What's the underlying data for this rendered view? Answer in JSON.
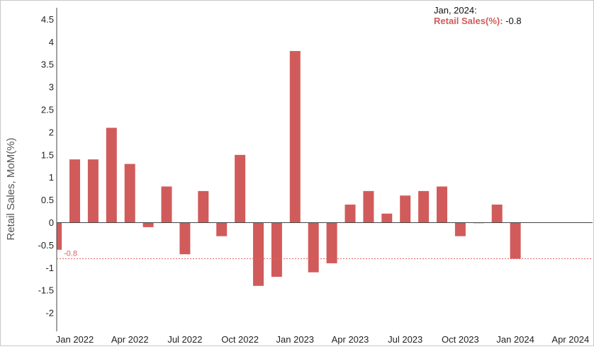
{
  "tooltip": {
    "date": "Jan, 2024:",
    "series_label": "Retail Sales(%)",
    "separator": ":",
    "value": "-0.8"
  },
  "chart_data": {
    "type": "bar",
    "ylabel": "Retail Sales, MoM(%)",
    "ylim": [
      -2.5,
      4.8
    ],
    "yticks": [
      "4.5",
      "4",
      "3.5",
      "3",
      "2.5",
      "2",
      "1.5",
      "1",
      "0.5",
      "0",
      "-0.5",
      "-1",
      "-1.5",
      "-2"
    ],
    "ytick_values": [
      4.5,
      4,
      3.5,
      3,
      2.5,
      2,
      1.5,
      1,
      0.5,
      0,
      -0.5,
      -1,
      -1.5,
      -2
    ],
    "xticks": [
      "Jan 2022",
      "Apr 2022",
      "Jul 2022",
      "Oct 2022",
      "Jan 2023",
      "Apr 2023",
      "Jul 2023",
      "Oct 2023",
      "Jan 2024",
      "Apr 2024"
    ],
    "xtick_months": [
      0,
      3,
      6,
      9,
      12,
      15,
      18,
      21,
      24,
      27
    ],
    "x_start": "Jan 2022",
    "months_shown": 28,
    "series": [
      {
        "months": [
          -1,
          0,
          1,
          2,
          3,
          4,
          5,
          6,
          7,
          8,
          9,
          10,
          11,
          12,
          13,
          14,
          15,
          16,
          17,
          18,
          19,
          20,
          21,
          22,
          23,
          24
        ],
        "values": [
          -0.6,
          1.4,
          1.4,
          2.1,
          1.3,
          -0.1,
          0.8,
          -0.7,
          0.7,
          -0.3,
          1.5,
          -1.4,
          -1.2,
          3.8,
          -1.1,
          -0.9,
          0.4,
          0.7,
          0.2,
          0.6,
          0.7,
          0.8,
          -0.3,
          0.0,
          0.4,
          -0.8
        ]
      }
    ],
    "bar_color": "#d15b5b",
    "reference_line": {
      "value": -0.8,
      "label": "-0.8",
      "color": "#e06060"
    },
    "grid": false
  }
}
